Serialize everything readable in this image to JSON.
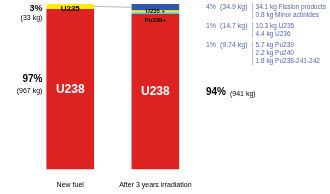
{
  "chart_data": {
    "type": "bar",
    "stacked": true,
    "categories": [
      "New fuel",
      "After 3 years irradiation"
    ],
    "series": [
      {
        "color": "#dd2222",
        "values": [
          97,
          94
        ]
      },
      {
        "color": "#55ccdd",
        "values": [
          null,
          1
        ]
      },
      {
        "color": "#ffee00",
        "values": [
          3,
          1
        ]
      },
      {
        "color": "#3355aa",
        "values": [
          null,
          4
        ]
      }
    ],
    "ylim": [
      0,
      100
    ],
    "grid": false,
    "tick_labels": "x",
    "annotations": [
      "U235",
      "U238",
      "U235 +",
      "Pu239+",
      "U238",
      "3%",
      "(33 kg)",
      "97%",
      "(967 kg)",
      "4%  (34.9 kg)",
      "34.1 kg Fission products",
      "0.8 kg Minor actinides",
      "1%  (14.7 kg)",
      "10.3 kg U235",
      "4.4 kg U236",
      "1%  (9.74 kg)",
      "5.7 kg Pu239",
      "2.2 kg Pu240",
      "1.8 kg Pu238-241-242",
      "94%",
      "(941 kg)"
    ]
  }
}
